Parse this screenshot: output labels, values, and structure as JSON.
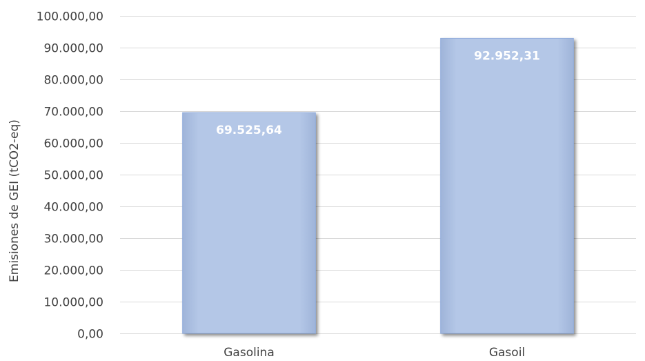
{
  "chart_data": {
    "type": "bar",
    "categories": [
      "Gasolina",
      "Gasoil"
    ],
    "values": [
      69525.64,
      92952.31
    ],
    "value_labels": [
      "69.525,64",
      "92.952,31"
    ],
    "ylabel": "Emisiones de GEI (tCO2-eq)",
    "ylim": [
      0,
      100000
    ],
    "y_ticks": [
      0,
      10000,
      20000,
      30000,
      40000,
      50000,
      60000,
      70000,
      80000,
      90000,
      100000
    ],
    "y_tick_labels": [
      "0,00",
      "10.000,00",
      "20.000,00",
      "30.000,00",
      "40.000,00",
      "50.000,00",
      "60.000,00",
      "70.000,00",
      "80.000,00",
      "90.000,00",
      "100.000,00"
    ],
    "grid": true,
    "legend": false,
    "bar_color": "#b4c7e7",
    "bar_edge_color": "#8eaadb",
    "data_label_color": "#ffffff"
  }
}
